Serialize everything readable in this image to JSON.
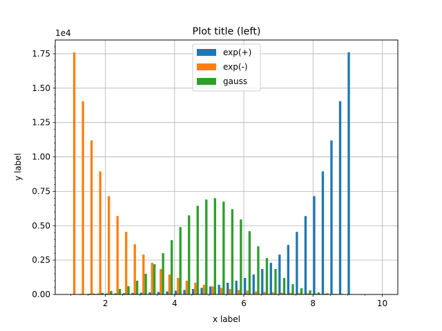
{
  "chart_data": {
    "type": "bar",
    "title": "Plot title (left)",
    "xlabel": "x label",
    "ylabel": "y label",
    "y_offset_text": "1e4",
    "xlim": [
      0.55,
      10.45
    ],
    "ylim": [
      0,
      18500
    ],
    "xticks": [
      2,
      4,
      6,
      8,
      10
    ],
    "yticks": [
      0,
      2500,
      5000,
      7500,
      10000,
      12500,
      15000,
      17500
    ],
    "ytick_labels": [
      "0.00",
      "0.25",
      "0.50",
      "0.75",
      "1.00",
      "1.25",
      "1.50",
      "1.75"
    ],
    "grid": true,
    "legend_position": "top-center",
    "bin_centers": [
      1.1,
      1.35,
      1.6,
      1.85,
      2.1,
      2.35,
      2.6,
      2.85,
      3.1,
      3.35,
      3.6,
      3.85,
      4.1,
      4.35,
      4.6,
      4.85,
      5.1,
      5.35,
      5.6,
      5.85,
      6.1,
      6.35,
      6.6,
      6.85,
      7.1,
      7.35,
      7.6,
      7.85,
      8.1,
      8.35,
      8.6,
      8.85,
      9.1,
      9.35,
      9.6,
      9.85
    ],
    "series": [
      {
        "name": "exp(+)",
        "color": "#1f77b4",
        "values": [
          30,
          40,
          50,
          60,
          70,
          80,
          90,
          110,
          130,
          150,
          180,
          220,
          270,
          330,
          400,
          480,
          580,
          700,
          850,
          1000,
          1200,
          1450,
          1850,
          2300,
          2900,
          3600,
          4550,
          5700,
          7150,
          8950,
          11200,
          14050,
          17600,
          0,
          0,
          0
        ]
      },
      {
        "name": "exp(-)",
        "color": "#ff7f0e",
        "values": [
          17600,
          14050,
          11200,
          8950,
          7150,
          5700,
          4550,
          3650,
          2900,
          2300,
          1850,
          1450,
          1200,
          1000,
          850,
          700,
          580,
          480,
          400,
          330,
          270,
          220,
          180,
          150,
          130,
          110,
          90,
          80,
          70,
          60,
          50,
          40,
          30,
          0,
          0,
          0
        ]
      },
      {
        "name": "gauss",
        "color": "#2ca02c",
        "values": [
          0,
          20,
          60,
          120,
          250,
          400,
          600,
          1000,
          1500,
          2200,
          3000,
          3950,
          4900,
          5750,
          6450,
          6900,
          7000,
          6750,
          6200,
          5450,
          4600,
          3500,
          2650,
          1850,
          1200,
          750,
          450,
          300,
          150,
          80,
          40,
          20,
          10,
          0,
          0,
          0
        ]
      }
    ]
  }
}
